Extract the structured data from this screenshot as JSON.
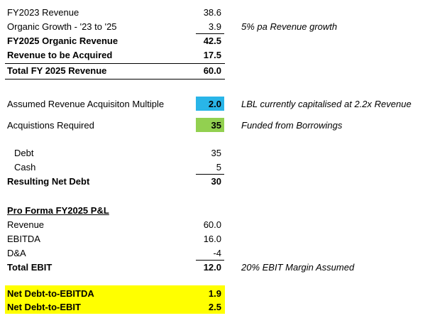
{
  "colors": {
    "multiple_cell": "#29b5e8",
    "acquisitions_cell": "#92d050",
    "highlight": "#ffff00"
  },
  "revenue": {
    "fy2023": {
      "label": "FY2023 Revenue",
      "value": "38.6"
    },
    "organic": {
      "label": "Organic Growth - '23 to '25",
      "value": "3.9",
      "note": "5%  pa Revenue growth"
    },
    "fy2025_organic": {
      "label": "FY2025 Organic Revenue",
      "value": "42.5"
    },
    "to_acquire": {
      "label": "Revenue to be Acquired",
      "value": "17.5"
    },
    "total": {
      "label": "Total FY 2025 Revenue",
      "value": "60.0"
    }
  },
  "acquisition": {
    "multiple": {
      "label": "Assumed Revenue Acquisiton Multiple",
      "value": "2.0",
      "note": "LBL currently capitalised at 2.2x Revenue"
    },
    "required": {
      "label": "Acquistions Required",
      "value": "35",
      "note": "Funded from Borrowings"
    }
  },
  "funding": {
    "debt": {
      "label": "Debt",
      "value": "35"
    },
    "cash": {
      "label": "Cash",
      "value": "5"
    },
    "net_debt": {
      "label": "Resulting Net Debt",
      "value": "30"
    }
  },
  "pnl": {
    "heading": "Pro Forma FY2025 P&L",
    "revenue": {
      "label": "Revenue",
      "value": "60.0"
    },
    "ebitda": {
      "label": "EBITDA",
      "value": "16.0"
    },
    "da": {
      "label": "D&A",
      "value": "-4"
    },
    "ebit": {
      "label": "Total EBIT",
      "value": "12.0",
      "note": "20%  EBIT Margin Assumed"
    }
  },
  "ratios": {
    "nd_ebitda": {
      "label": "Net Debt-to-EBITDA",
      "value": "1.9"
    },
    "nd_ebit": {
      "label": "Net Debt-to-EBIT",
      "value": "2.5"
    }
  }
}
